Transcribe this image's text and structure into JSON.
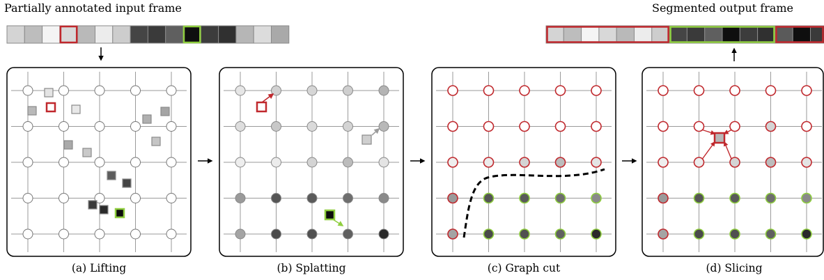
{
  "titles": {
    "input": "Partially annotated input frame",
    "output": "Segmented output frame"
  },
  "captions": {
    "lifting": "(a) Lifting",
    "splatting": "(b) Splatting",
    "graph_cut": "(c) Graph cut",
    "slicing": "(d) Slicing"
  },
  "colors": {
    "annotation_background": "#c0282d",
    "annotation_foreground": "#8fce3f",
    "grid_line": "#9a9a9a",
    "panel_border": "#000000"
  },
  "input_strip": {
    "pixels": [
      "#d4d4d4",
      "#bdbdbd",
      "#f4f4f4",
      "#d8d8d8",
      "#b9b9b9",
      "#ececec",
      "#cdcdcd",
      "#454545",
      "#3a3a3a",
      "#5f5f5f",
      "#0f0f0f",
      "#3c3c3c",
      "#303030",
      "#b6b6b6",
      "#dcdcdc",
      "#a9a9a9"
    ],
    "annotated": [
      {
        "index": 3,
        "label": "background"
      },
      {
        "index": 10,
        "label": "foreground"
      }
    ]
  },
  "output_strip": {
    "pixels": [
      "#d4d4d4",
      "#bdbdbd",
      "#f4f4f4",
      "#d8d8d8",
      "#b9b9b9",
      "#ececec",
      "#cdcdcd",
      "#454545",
      "#3a3a3a",
      "#5f5f5f",
      "#0f0f0f",
      "#3c3c3c",
      "#303030",
      "#5a5a5a",
      "#0f0f0f",
      "#3a3a3a"
    ],
    "groups": [
      {
        "label": "background",
        "from": 0,
        "to": 6
      },
      {
        "label": "foreground",
        "from": 7,
        "to": 12
      },
      {
        "label": "background",
        "from": 13,
        "to": 15
      }
    ]
  },
  "panels": [
    {
      "id": "lifting",
      "vertex_style": "empty"
    },
    {
      "id": "splatting",
      "vertex_style": "filled"
    },
    {
      "id": "graph_cut",
      "vertex_style": "labeled",
      "has_cut": true
    },
    {
      "id": "slicing",
      "vertex_style": "labeled",
      "has_slice": true
    }
  ],
  "vertex_fill": [
    [
      "#e6e6e6",
      "#d2d2d2",
      "#d6d6d6",
      "#cfcfcf",
      "#b4b4b4"
    ],
    [
      "#dedede",
      "#c8c8c8",
      "#dadada",
      "#d4d4d4",
      "#b8b8b8"
    ],
    [
      "#eeeeee",
      "#ececec",
      "#d4d4d4",
      "#bcbcbc",
      "#e4e4e4"
    ],
    [
      "#9a9a9a",
      "#555555",
      "#5a5a5a",
      "#6e6e6e",
      "#8a8a8a"
    ],
    [
      "#a4a4a4",
      "#4a4a4a",
      "#505050",
      "#606060",
      "#2a2a2a"
    ]
  ],
  "vertex_label": [
    [
      "background",
      "background",
      "background",
      "background",
      "background"
    ],
    [
      "background",
      "background",
      "background",
      "background",
      "background"
    ],
    [
      "background",
      "background",
      "background",
      "background",
      "background"
    ],
    [
      "background",
      "foreground",
      "foreground",
      "foreground",
      "foreground"
    ],
    [
      "background",
      "foreground",
      "foreground",
      "foreground",
      "foreground"
    ]
  ],
  "lifted_pixels": [
    {
      "fill": "#e4e4e4"
    },
    {
      "fill": "#b9b9b9"
    },
    {
      "fill": "#ffffff",
      "annotated": "background"
    },
    {
      "fill": "#e8e8e8"
    },
    {
      "fill": "#b0b0b0"
    },
    {
      "fill": "#a5a5a5"
    },
    {
      "fill": "#c5c5c5"
    },
    {
      "fill": "#a9a9a9"
    },
    {
      "fill": "#c9c9c9"
    },
    {
      "fill": "#5c5c5c"
    },
    {
      "fill": "#444444"
    },
    {
      "fill": "#3a3a3a"
    },
    {
      "fill": "#2a2a2a"
    },
    {
      "fill": "#0d0d0d",
      "annotated": "foreground"
    }
  ]
}
